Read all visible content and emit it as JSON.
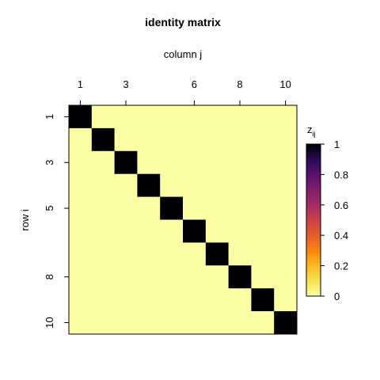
{
  "chart_data": {
    "type": "heatmap",
    "title": "identity matrix",
    "xlabel": "column j",
    "ylabel": "row i",
    "x_tick_labels": [
      "1",
      "3",
      "6",
      "8",
      "10"
    ],
    "x_tick_values": [
      1,
      3,
      6,
      8,
      10
    ],
    "y_tick_labels": [
      "1",
      "3",
      "5",
      "8",
      "10"
    ],
    "y_tick_values": [
      1,
      3,
      5,
      8,
      10
    ],
    "x_range": [
      1,
      10
    ],
    "y_range": [
      1,
      10
    ],
    "matrix": [
      [
        1,
        0,
        0,
        0,
        0,
        0,
        0,
        0,
        0,
        0
      ],
      [
        0,
        1,
        0,
        0,
        0,
        0,
        0,
        0,
        0,
        0
      ],
      [
        0,
        0,
        1,
        0,
        0,
        0,
        0,
        0,
        0,
        0
      ],
      [
        0,
        0,
        0,
        1,
        0,
        0,
        0,
        0,
        0,
        0
      ],
      [
        0,
        0,
        0,
        0,
        1,
        0,
        0,
        0,
        0,
        0
      ],
      [
        0,
        0,
        0,
        0,
        0,
        1,
        0,
        0,
        0,
        0
      ],
      [
        0,
        0,
        0,
        0,
        0,
        0,
        1,
        0,
        0,
        0
      ],
      [
        0,
        0,
        0,
        0,
        0,
        0,
        0,
        1,
        0,
        0
      ],
      [
        0,
        0,
        0,
        0,
        0,
        0,
        0,
        0,
        1,
        0
      ],
      [
        0,
        0,
        0,
        0,
        0,
        0,
        0,
        0,
        0,
        1
      ]
    ],
    "zlim": [
      0,
      1
    ],
    "colorbar": {
      "title_main": "z",
      "title_sub": "ij",
      "tick_values": [
        0,
        0.2,
        0.4,
        0.6,
        0.8,
        1
      ],
      "tick_labels": [
        "0",
        "0.2",
        "0.4",
        "0.6",
        "0.8",
        "1"
      ],
      "palette": "inferno-reversed"
    },
    "colors": {
      "low": "#FCFFA4",
      "high": "#000004"
    }
  }
}
